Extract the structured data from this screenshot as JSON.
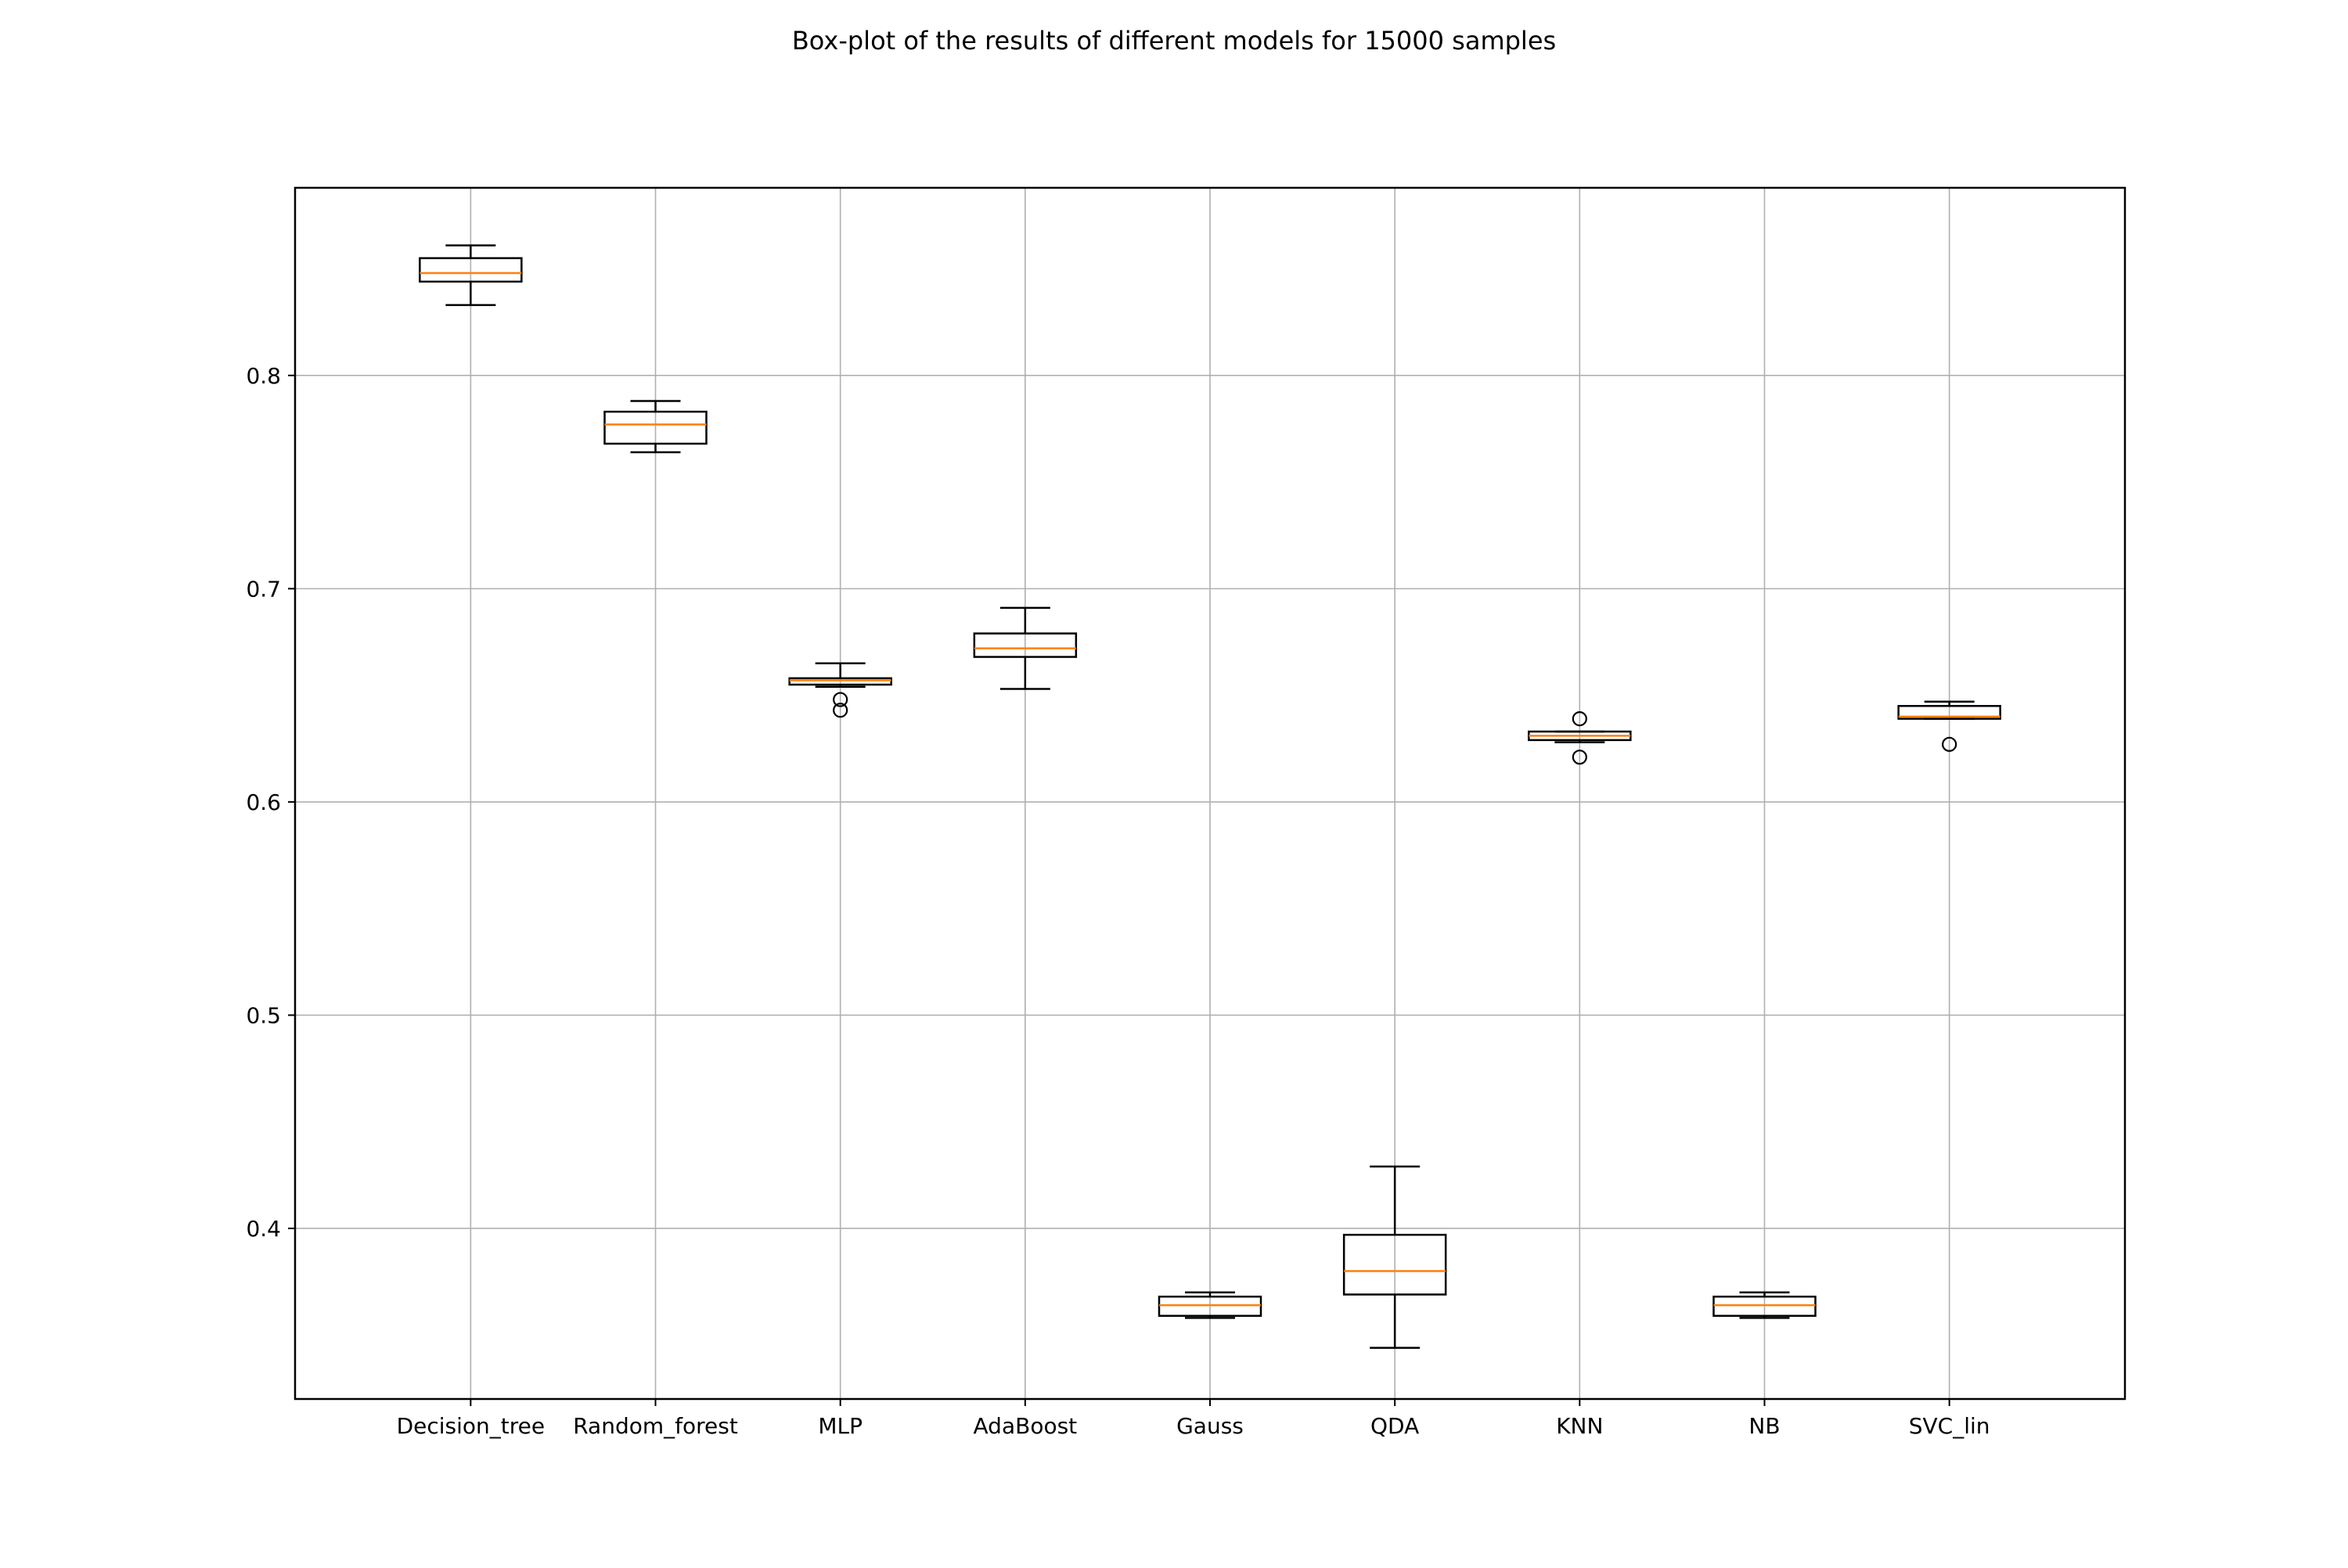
{
  "chart_data": {
    "type": "boxplot",
    "title": "Box-plot of the results of different models for 15000 samples",
    "xlabel": "",
    "ylabel": "",
    "ylim": [
      0.32,
      0.888
    ],
    "yticks": [
      0.4,
      0.5,
      0.6,
      0.7,
      0.8
    ],
    "ytick_labels": [
      "0.4",
      "0.5",
      "0.6",
      "0.7",
      "0.8"
    ],
    "grid": true,
    "categories": [
      "Decision_tree",
      "Random_forest",
      "MLP",
      "AdaBoost",
      "Gauss",
      "QDA",
      "KNN",
      "NB",
      "SVC_lin"
    ],
    "boxes": [
      {
        "name": "Decision_tree",
        "whislo": 0.833,
        "q1": 0.844,
        "med": 0.848,
        "q3": 0.855,
        "whishi": 0.861,
        "fliers": []
      },
      {
        "name": "Random_forest",
        "whislo": 0.764,
        "q1": 0.768,
        "med": 0.777,
        "q3": 0.783,
        "whishi": 0.788,
        "fliers": []
      },
      {
        "name": "MLP",
        "whislo": 0.654,
        "q1": 0.655,
        "med": 0.657,
        "q3": 0.658,
        "whishi": 0.665,
        "fliers": [
          0.648,
          0.643
        ]
      },
      {
        "name": "AdaBoost",
        "whislo": 0.653,
        "q1": 0.668,
        "med": 0.672,
        "q3": 0.679,
        "whishi": 0.691,
        "fliers": []
      },
      {
        "name": "Gauss",
        "whislo": 0.358,
        "q1": 0.359,
        "med": 0.364,
        "q3": 0.368,
        "whishi": 0.37,
        "fliers": []
      },
      {
        "name": "QDA",
        "whislo": 0.344,
        "q1": 0.369,
        "med": 0.38,
        "q3": 0.397,
        "whishi": 0.429,
        "fliers": []
      },
      {
        "name": "KNN",
        "whislo": 0.628,
        "q1": 0.629,
        "med": 0.631,
        "q3": 0.633,
        "whishi": 0.633,
        "fliers": [
          0.639,
          0.621
        ]
      },
      {
        "name": "NB",
        "whislo": 0.358,
        "q1": 0.359,
        "med": 0.364,
        "q3": 0.368,
        "whishi": 0.37,
        "fliers": []
      },
      {
        "name": "SVC_lin",
        "whislo": 0.639,
        "q1": 0.639,
        "med": 0.64,
        "q3": 0.645,
        "whishi": 0.647,
        "fliers": [
          0.627
        ]
      }
    ],
    "colors": {
      "box": "#000000",
      "median": "#ff7f0e",
      "grid": "#b0b0b0"
    }
  }
}
